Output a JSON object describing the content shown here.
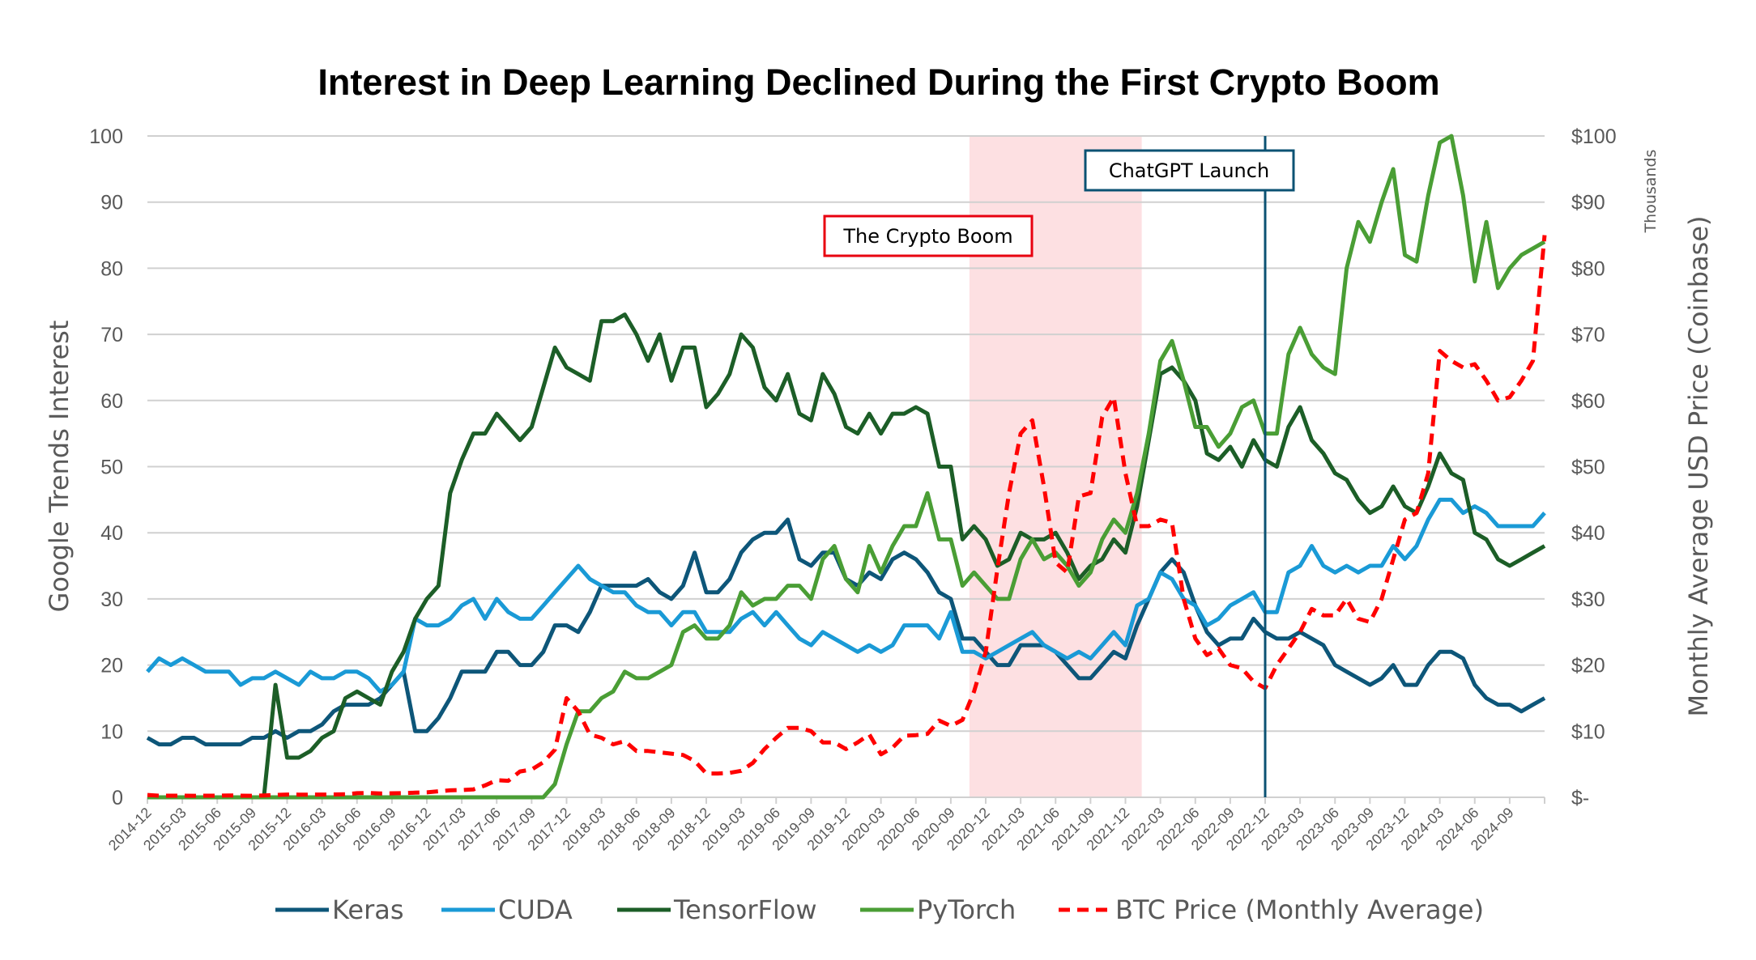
{
  "chart_data": {
    "type": "line",
    "title": "Interest in Deep Learning Declined During the First Crypto Boom",
    "ylabel": "Google Trends Interest",
    "y2label": "Monthly Average USD Price (Coinbase)",
    "y2unit": "Thousands",
    "ylim": [
      0,
      100
    ],
    "y2lim": [
      0,
      100
    ],
    "yticks": [
      "0",
      "10",
      "20",
      "30",
      "40",
      "50",
      "60",
      "70",
      "80",
      "90",
      "100"
    ],
    "y2ticks": [
      "$-",
      "$10",
      "$20",
      "$30",
      "$40",
      "$50",
      "$60",
      "$70",
      "$80",
      "$90",
      "$100"
    ],
    "x_start": "2014-12",
    "x_end": "2024-12",
    "xticks": [
      "2014-12",
      "2015-03",
      "2015-06",
      "2015-09",
      "2015-12",
      "2016-03",
      "2016-06",
      "2016-09",
      "2016-12",
      "2017-03",
      "2017-06",
      "2017-09",
      "2017-12",
      "2018-03",
      "2018-06",
      "2018-09",
      "2018-12",
      "2019-03",
      "2019-06",
      "2019-09",
      "2019-12",
      "2020-03",
      "2020-06",
      "2020-09",
      "2020-12",
      "2021-03",
      "2021-06",
      "2021-09",
      "2021-12",
      "2022-03",
      "2022-06",
      "2022-09",
      "2022-12",
      "2023-03",
      "2023-06",
      "2023-09",
      "2023-12",
      "2024-03",
      "2024-06",
      "2024-09"
    ],
    "grid": true,
    "legend_position": "bottom",
    "annotations": {
      "crypto_boom": {
        "label": "The Crypto Boom",
        "start": "2020-10",
        "end": "2022-01",
        "color": "#fde0e2",
        "border": "#e8000f"
      },
      "chatgpt": {
        "label": "ChatGPT Launch",
        "date": "2022-12",
        "color": "#0b5273"
      }
    },
    "series": [
      {
        "name": "Keras",
        "axis": "left",
        "color": "#0d5679",
        "dashed": false,
        "values": [
          9,
          8,
          8,
          9,
          9,
          8,
          8,
          8,
          8,
          9,
          9,
          10,
          9,
          10,
          10,
          11,
          13,
          14,
          14,
          14,
          15,
          17,
          19,
          10,
          10,
          12,
          15,
          19,
          19,
          19,
          22,
          22,
          20,
          20,
          22,
          26,
          26,
          25,
          28,
          32,
          32,
          32,
          32,
          33,
          31,
          30,
          32,
          37,
          31,
          31,
          33,
          37,
          39,
          40,
          40,
          42,
          36,
          35,
          37,
          37,
          33,
          32,
          34,
          33,
          36,
          37,
          36,
          34,
          31,
          30,
          24,
          24,
          22,
          20,
          20,
          23,
          23,
          23,
          22,
          20,
          18,
          18,
          20,
          22,
          21,
          26,
          30,
          34,
          36,
          34,
          29,
          25,
          23,
          24,
          24,
          27,
          25,
          24,
          24,
          25,
          24,
          23,
          20,
          19,
          18,
          17,
          18,
          20,
          17,
          17,
          20,
          22,
          22,
          21,
          17,
          15,
          14,
          14,
          13,
          14,
          15
        ]
      },
      {
        "name": "CUDA",
        "axis": "left",
        "color": "#1a9ad6",
        "dashed": false,
        "values": [
          19,
          21,
          20,
          21,
          20,
          19,
          19,
          19,
          17,
          18,
          18,
          19,
          18,
          17,
          19,
          18,
          18,
          19,
          19,
          18,
          16,
          17,
          19,
          27,
          26,
          26,
          27,
          29,
          30,
          27,
          30,
          28,
          27,
          27,
          29,
          31,
          33,
          35,
          33,
          32,
          31,
          31,
          29,
          28,
          28,
          26,
          28,
          28,
          25,
          25,
          25,
          27,
          28,
          26,
          28,
          26,
          24,
          23,
          25,
          24,
          23,
          22,
          23,
          22,
          23,
          26,
          26,
          26,
          24,
          28,
          22,
          22,
          21,
          22,
          23,
          24,
          25,
          23,
          22,
          21,
          22,
          21,
          23,
          25,
          23,
          29,
          30,
          34,
          33,
          30,
          29,
          26,
          27,
          29,
          30,
          31,
          28,
          28,
          34,
          35,
          38,
          35,
          34,
          35,
          34,
          35,
          35,
          38,
          36,
          38,
          42,
          45,
          45,
          43,
          44,
          43,
          41,
          41,
          41,
          41,
          43
        ]
      },
      {
        "name": "TensorFlow",
        "axis": "left",
        "color": "#1c5e27",
        "dashed": false,
        "values": [
          0,
          0,
          0,
          0,
          0,
          0,
          0,
          0,
          0,
          0,
          0,
          17,
          6,
          6,
          7,
          9,
          10,
          15,
          16,
          15,
          14,
          19,
          22,
          27,
          30,
          32,
          46,
          51,
          55,
          55,
          58,
          56,
          54,
          56,
          62,
          68,
          65,
          64,
          63,
          72,
          72,
          73,
          70,
          66,
          70,
          63,
          68,
          68,
          59,
          61,
          64,
          70,
          68,
          62,
          60,
          64,
          58,
          57,
          64,
          61,
          56,
          55,
          58,
          55,
          58,
          58,
          59,
          58,
          50,
          50,
          39,
          41,
          39,
          35,
          36,
          40,
          39,
          39,
          40,
          37,
          33,
          35,
          36,
          39,
          37,
          44,
          54,
          64,
          65,
          63,
          60,
          52,
          51,
          53,
          50,
          54,
          51,
          50,
          56,
          59,
          54,
          52,
          49,
          48,
          45,
          43,
          44,
          47,
          44,
          43,
          47,
          52,
          49,
          48,
          40,
          39,
          36,
          35,
          36,
          37,
          38
        ]
      },
      {
        "name": "PyTorch",
        "axis": "left",
        "color": "#4a9e35",
        "dashed": false,
        "values": [
          0,
          0,
          0,
          0,
          0,
          0,
          0,
          0,
          0,
          0,
          0,
          0,
          0,
          0,
          0,
          0,
          0,
          0,
          0,
          0,
          0,
          0,
          0,
          0,
          0,
          0,
          0,
          0,
          0,
          0,
          0,
          0,
          0,
          0,
          0,
          2,
          8,
          13,
          13,
          15,
          16,
          19,
          18,
          18,
          19,
          20,
          25,
          26,
          24,
          24,
          26,
          31,
          29,
          30,
          30,
          32,
          32,
          30,
          36,
          38,
          33,
          31,
          38,
          34,
          38,
          41,
          41,
          46,
          39,
          39,
          32,
          34,
          32,
          30,
          30,
          36,
          39,
          36,
          37,
          35,
          32,
          34,
          39,
          42,
          40,
          46,
          55,
          66,
          69,
          63,
          56,
          56,
          53,
          55,
          59,
          60,
          55,
          55,
          67,
          71,
          67,
          65,
          64,
          80,
          87,
          84,
          90,
          95,
          82,
          81,
          91,
          99,
          100,
          91,
          78,
          87,
          77,
          80,
          82,
          83,
          84
        ]
      },
      {
        "name": "BTC Price (Monthly Average)",
        "axis": "right",
        "color": "#ff0000",
        "dashed": true,
        "values": [
          0.35,
          0.25,
          0.24,
          0.26,
          0.23,
          0.24,
          0.24,
          0.28,
          0.25,
          0.23,
          0.28,
          0.35,
          0.42,
          0.41,
          0.4,
          0.42,
          0.43,
          0.45,
          0.63,
          0.66,
          0.58,
          0.61,
          0.64,
          0.7,
          0.75,
          0.9,
          1.05,
          1.1,
          1.2,
          1.8,
          2.6,
          2.5,
          3.9,
          4.2,
          5.3,
          7.2,
          15.0,
          13.0,
          9.5,
          9.0,
          8.0,
          8.5,
          7.0,
          7.0,
          6.8,
          6.6,
          6.4,
          5.5,
          3.6,
          3.6,
          3.7,
          4.0,
          5.2,
          7.3,
          9.0,
          10.5,
          10.5,
          10.0,
          8.3,
          8.3,
          7.3,
          8.3,
          9.5,
          6.5,
          7.5,
          9.3,
          9.4,
          9.6,
          11.6,
          10.8,
          11.7,
          16.0,
          22.0,
          34.5,
          46.0,
          55.0,
          57.0,
          47.0,
          35.5,
          34.0,
          45.5,
          46.0,
          57.5,
          60.5,
          49.0,
          41.0,
          41.0,
          42.0,
          41.5,
          30.0,
          24.0,
          21.5,
          22.5,
          20.0,
          19.5,
          17.5,
          16.5,
          20.0,
          22.5,
          25.0,
          28.5,
          27.5,
          27.5,
          30.0,
          27.0,
          26.5,
          30.0,
          36.0,
          42.0,
          43.0,
          49.0,
          67.5,
          66.0,
          65.0,
          65.5,
          63.0,
          60.0,
          60.5,
          63.0,
          66.0,
          85.0
        ]
      }
    ]
  }
}
